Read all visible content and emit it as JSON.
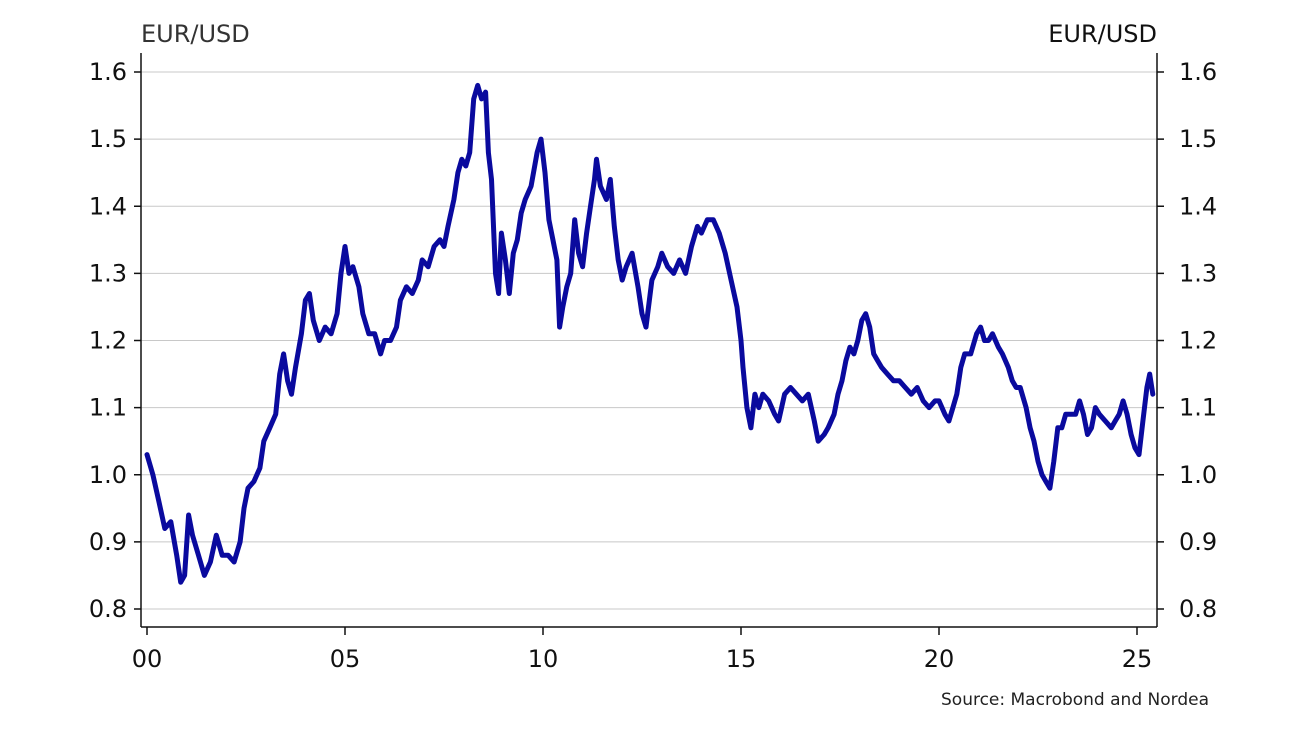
{
  "chart_data": {
    "type": "line",
    "title": "",
    "ylabel_left": "EUR/USD",
    "ylabel_right": "EUR/USD",
    "xlabel": "",
    "x_tick_labels": [
      "00",
      "05",
      "10",
      "15",
      "20",
      "25"
    ],
    "x_tick_values": [
      2000,
      2005,
      2010,
      2015,
      2020,
      2025
    ],
    "xlim": [
      2000,
      2025.4
    ],
    "ylim": [
      0.79,
      1.63
    ],
    "y_ticks": [
      0.8,
      0.9,
      1.0,
      1.1,
      1.2,
      1.3,
      1.4,
      1.5,
      1.6
    ],
    "y_tick_labels": [
      "0.8",
      "0.9",
      "1.0",
      "1.1",
      "1.2",
      "1.3",
      "1.4",
      "1.5",
      "1.6"
    ],
    "grid": true,
    "source": "Source: Macrobond and Nordea",
    "series": [
      {
        "color": "#0a0a9e",
        "points": [
          [
            2000.0,
            1.03
          ],
          [
            2000.15,
            1.0
          ],
          [
            2000.3,
            0.96
          ],
          [
            2000.45,
            0.92
          ],
          [
            2000.6,
            0.93
          ],
          [
            2000.75,
            0.88
          ],
          [
            2000.85,
            0.84
          ],
          [
            2000.95,
            0.85
          ],
          [
            2001.05,
            0.94
          ],
          [
            2001.15,
            0.91
          ],
          [
            2001.3,
            0.88
          ],
          [
            2001.45,
            0.85
          ],
          [
            2001.6,
            0.87
          ],
          [
            2001.75,
            0.91
          ],
          [
            2001.9,
            0.88
          ],
          [
            2002.05,
            0.88
          ],
          [
            2002.2,
            0.87
          ],
          [
            2002.35,
            0.9
          ],
          [
            2002.45,
            0.95
          ],
          [
            2002.55,
            0.98
          ],
          [
            2002.7,
            0.99
          ],
          [
            2002.85,
            1.01
          ],
          [
            2002.95,
            1.05
          ],
          [
            2003.1,
            1.07
          ],
          [
            2003.25,
            1.09
          ],
          [
            2003.35,
            1.15
          ],
          [
            2003.45,
            1.18
          ],
          [
            2003.55,
            1.14
          ],
          [
            2003.65,
            1.12
          ],
          [
            2003.75,
            1.16
          ],
          [
            2003.9,
            1.21
          ],
          [
            2004.0,
            1.26
          ],
          [
            2004.1,
            1.27
          ],
          [
            2004.2,
            1.23
          ],
          [
            2004.35,
            1.2
          ],
          [
            2004.5,
            1.22
          ],
          [
            2004.65,
            1.21
          ],
          [
            2004.8,
            1.24
          ],
          [
            2004.9,
            1.3
          ],
          [
            2005.0,
            1.34
          ],
          [
            2005.1,
            1.3
          ],
          [
            2005.2,
            1.31
          ],
          [
            2005.35,
            1.28
          ],
          [
            2005.45,
            1.24
          ],
          [
            2005.6,
            1.21
          ],
          [
            2005.75,
            1.21
          ],
          [
            2005.9,
            1.18
          ],
          [
            2006.0,
            1.2
          ],
          [
            2006.15,
            1.2
          ],
          [
            2006.3,
            1.22
          ],
          [
            2006.4,
            1.26
          ],
          [
            2006.55,
            1.28
          ],
          [
            2006.7,
            1.27
          ],
          [
            2006.85,
            1.29
          ],
          [
            2006.95,
            1.32
          ],
          [
            2007.1,
            1.31
          ],
          [
            2007.25,
            1.34
          ],
          [
            2007.4,
            1.35
          ],
          [
            2007.5,
            1.34
          ],
          [
            2007.6,
            1.37
          ],
          [
            2007.75,
            1.41
          ],
          [
            2007.85,
            1.45
          ],
          [
            2007.95,
            1.47
          ],
          [
            2008.05,
            1.46
          ],
          [
            2008.15,
            1.48
          ],
          [
            2008.25,
            1.56
          ],
          [
            2008.35,
            1.58
          ],
          [
            2008.45,
            1.56
          ],
          [
            2008.55,
            1.57
          ],
          [
            2008.62,
            1.48
          ],
          [
            2008.7,
            1.44
          ],
          [
            2008.8,
            1.3
          ],
          [
            2008.88,
            1.27
          ],
          [
            2008.95,
            1.36
          ],
          [
            2009.05,
            1.32
          ],
          [
            2009.15,
            1.27
          ],
          [
            2009.25,
            1.33
          ],
          [
            2009.35,
            1.35
          ],
          [
            2009.45,
            1.39
          ],
          [
            2009.55,
            1.41
          ],
          [
            2009.7,
            1.43
          ],
          [
            2009.85,
            1.48
          ],
          [
            2009.95,
            1.5
          ],
          [
            2010.05,
            1.45
          ],
          [
            2010.15,
            1.38
          ],
          [
            2010.25,
            1.35
          ],
          [
            2010.35,
            1.32
          ],
          [
            2010.42,
            1.22
          ],
          [
            2010.5,
            1.25
          ],
          [
            2010.6,
            1.28
          ],
          [
            2010.7,
            1.3
          ],
          [
            2010.8,
            1.38
          ],
          [
            2010.9,
            1.33
          ],
          [
            2011.0,
            1.31
          ],
          [
            2011.1,
            1.36
          ],
          [
            2011.2,
            1.4
          ],
          [
            2011.3,
            1.44
          ],
          [
            2011.35,
            1.47
          ],
          [
            2011.45,
            1.43
          ],
          [
            2011.6,
            1.41
          ],
          [
            2011.7,
            1.44
          ],
          [
            2011.8,
            1.37
          ],
          [
            2011.9,
            1.32
          ],
          [
            2012.0,
            1.29
          ],
          [
            2012.1,
            1.31
          ],
          [
            2012.25,
            1.33
          ],
          [
            2012.4,
            1.28
          ],
          [
            2012.5,
            1.24
          ],
          [
            2012.6,
            1.22
          ],
          [
            2012.75,
            1.29
          ],
          [
            2012.9,
            1.31
          ],
          [
            2013.0,
            1.33
          ],
          [
            2013.15,
            1.31
          ],
          [
            2013.3,
            1.3
          ],
          [
            2013.45,
            1.32
          ],
          [
            2013.6,
            1.3
          ],
          [
            2013.75,
            1.34
          ],
          [
            2013.9,
            1.37
          ],
          [
            2014.0,
            1.36
          ],
          [
            2014.15,
            1.38
          ],
          [
            2014.3,
            1.38
          ],
          [
            2014.45,
            1.36
          ],
          [
            2014.6,
            1.33
          ],
          [
            2014.75,
            1.29
          ],
          [
            2014.9,
            1.25
          ],
          [
            2015.0,
            1.2
          ],
          [
            2015.05,
            1.16
          ],
          [
            2015.15,
            1.1
          ],
          [
            2015.25,
            1.07
          ],
          [
            2015.35,
            1.12
          ],
          [
            2015.45,
            1.1
          ],
          [
            2015.55,
            1.12
          ],
          [
            2015.7,
            1.11
          ],
          [
            2015.85,
            1.09
          ],
          [
            2015.95,
            1.08
          ],
          [
            2016.1,
            1.12
          ],
          [
            2016.25,
            1.13
          ],
          [
            2016.4,
            1.12
          ],
          [
            2016.55,
            1.11
          ],
          [
            2016.7,
            1.12
          ],
          [
            2016.85,
            1.08
          ],
          [
            2016.95,
            1.05
          ],
          [
            2017.1,
            1.06
          ],
          [
            2017.2,
            1.07
          ],
          [
            2017.35,
            1.09
          ],
          [
            2017.45,
            1.12
          ],
          [
            2017.55,
            1.14
          ],
          [
            2017.65,
            1.17
          ],
          [
            2017.75,
            1.19
          ],
          [
            2017.85,
            1.18
          ],
          [
            2017.95,
            1.2
          ],
          [
            2018.05,
            1.23
          ],
          [
            2018.15,
            1.24
          ],
          [
            2018.25,
            1.22
          ],
          [
            2018.35,
            1.18
          ],
          [
            2018.45,
            1.17
          ],
          [
            2018.55,
            1.16
          ],
          [
            2018.7,
            1.15
          ],
          [
            2018.85,
            1.14
          ],
          [
            2019.0,
            1.14
          ],
          [
            2019.15,
            1.13
          ],
          [
            2019.3,
            1.12
          ],
          [
            2019.45,
            1.13
          ],
          [
            2019.6,
            1.11
          ],
          [
            2019.75,
            1.1
          ],
          [
            2019.9,
            1.11
          ],
          [
            2020.0,
            1.11
          ],
          [
            2020.15,
            1.09
          ],
          [
            2020.25,
            1.08
          ],
          [
            2020.35,
            1.1
          ],
          [
            2020.45,
            1.12
          ],
          [
            2020.55,
            1.16
          ],
          [
            2020.65,
            1.18
          ],
          [
            2020.8,
            1.18
          ],
          [
            2020.95,
            1.21
          ],
          [
            2021.05,
            1.22
          ],
          [
            2021.15,
            1.2
          ],
          [
            2021.25,
            1.2
          ],
          [
            2021.35,
            1.21
          ],
          [
            2021.5,
            1.19
          ],
          [
            2021.6,
            1.18
          ],
          [
            2021.75,
            1.16
          ],
          [
            2021.85,
            1.14
          ],
          [
            2021.95,
            1.13
          ],
          [
            2022.05,
            1.13
          ],
          [
            2022.2,
            1.1
          ],
          [
            2022.3,
            1.07
          ],
          [
            2022.4,
            1.05
          ],
          [
            2022.5,
            1.02
          ],
          [
            2022.6,
            1.0
          ],
          [
            2022.7,
            0.99
          ],
          [
            2022.8,
            0.98
          ],
          [
            2022.9,
            1.02
          ],
          [
            2023.0,
            1.07
          ],
          [
            2023.1,
            1.07
          ],
          [
            2023.2,
            1.09
          ],
          [
            2023.3,
            1.09
          ],
          [
            2023.45,
            1.09
          ],
          [
            2023.55,
            1.11
          ],
          [
            2023.65,
            1.09
          ],
          [
            2023.75,
            1.06
          ],
          [
            2023.85,
            1.07
          ],
          [
            2023.95,
            1.1
          ],
          [
            2024.05,
            1.09
          ],
          [
            2024.2,
            1.08
          ],
          [
            2024.35,
            1.07
          ],
          [
            2024.45,
            1.08
          ],
          [
            2024.55,
            1.09
          ],
          [
            2024.65,
            1.11
          ],
          [
            2024.75,
            1.09
          ],
          [
            2024.85,
            1.06
          ],
          [
            2024.95,
            1.04
          ],
          [
            2025.05,
            1.03
          ],
          [
            2025.15,
            1.08
          ],
          [
            2025.25,
            1.13
          ],
          [
            2025.32,
            1.15
          ],
          [
            2025.4,
            1.12
          ]
        ]
      }
    ]
  }
}
